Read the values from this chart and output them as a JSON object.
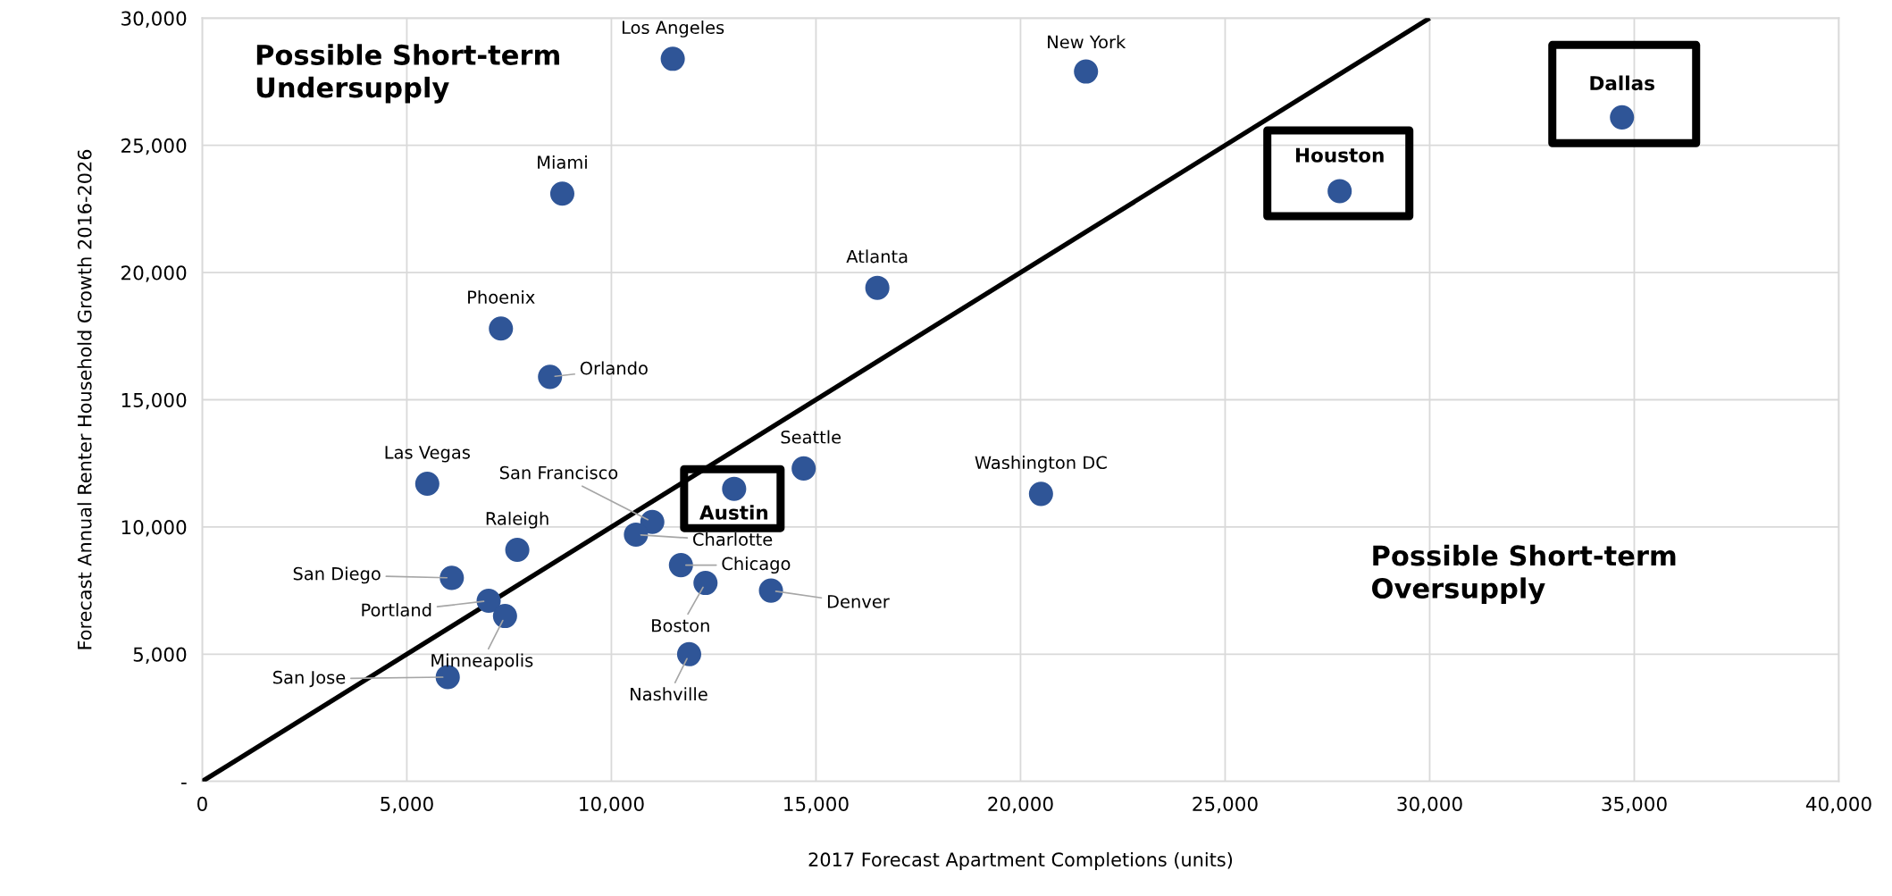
{
  "chart_data": {
    "type": "scatter",
    "xlabel": "2017 Forecast Apartment Completions (units)",
    "ylabel": "Forecast Annual Renter Household Growth 2016-2026",
    "xlim": [
      0,
      40000
    ],
    "ylim": [
      0,
      30000
    ],
    "xticks": [
      0,
      {
        "value": 5000,
        "label": "5,000"
      },
      {
        "value": 10000,
        "label": "10,000"
      },
      {
        "value": 15000,
        "label": "15,000"
      },
      {
        "value": 20000,
        "label": "20,000"
      },
      {
        "value": 25000,
        "label": "25,000"
      },
      {
        "value": 30000,
        "label": "30,000"
      },
      {
        "value": 35000,
        "label": "35,000"
      },
      {
        "value": 40000,
        "label": "40,000"
      }
    ],
    "yticks": [
      {
        "value": 0,
        "label": "-"
      },
      {
        "value": 5000,
        "label": "5,000"
      },
      {
        "value": 10000,
        "label": "10,000"
      },
      {
        "value": 15000,
        "label": "15,000"
      },
      {
        "value": 20000,
        "label": "20,000"
      },
      {
        "value": 25000,
        "label": "25,000"
      },
      {
        "value": 30000,
        "label": "30,000"
      }
    ],
    "grid": true,
    "legend": false,
    "marker": "circle",
    "series": [
      {
        "type": "line",
        "color": "#000000",
        "x": [
          0,
          30000
        ],
        "values": [
          0,
          30000
        ],
        "line_style": "solid",
        "marker": "none"
      },
      {
        "color": "#2f5597",
        "x": [
          11500,
          21600,
          8800,
          16500,
          7300,
          8500,
          5500,
          14700,
          20500,
          11000,
          10600,
          7700,
          11700,
          12300,
          13900,
          6100,
          7000,
          7400,
          11900,
          6000
        ],
        "values": [
          28400,
          27900,
          23100,
          19400,
          17800,
          15900,
          11700,
          12300,
          11300,
          10200,
          9700,
          9100,
          8500,
          7800,
          7500,
          8000,
          7100,
          6500,
          5000,
          4100
        ]
      },
      {
        "color": "#2f5597",
        "x": [
          13000,
          27800,
          34700
        ],
        "values": [
          11500,
          23200,
          26100
        ]
      }
    ],
    "annotations": [
      "Possible Short-term\nUndersupply",
      "Possible Short-term\nOversupply",
      {
        "text": "Los Angeles",
        "x": 11500,
        "y": 28400
      },
      {
        "text": "New York",
        "x": 21600,
        "y": 27900
      },
      {
        "text": "Miami",
        "x": 8800,
        "y": 23100
      },
      {
        "text": "Atlanta",
        "x": 16500,
        "y": 19400
      },
      {
        "text": "Phoenix",
        "x": 7300,
        "y": 17800
      },
      {
        "text": "Orlando",
        "x": 8500,
        "y": 15900
      },
      {
        "text": "Las Vegas",
        "x": 5500,
        "y": 11700
      },
      {
        "text": "Seattle",
        "x": 14700,
        "y": 12300
      },
      {
        "text": "Washington DC",
        "x": 20500,
        "y": 11300
      },
      {
        "text": "San Francisco",
        "x": 11000,
        "y": 10200
      },
      {
        "text": "Charlotte",
        "x": 10600,
        "y": 9700
      },
      {
        "text": "Raleigh",
        "x": 7700,
        "y": 9100
      },
      {
        "text": "Chicago",
        "x": 11700,
        "y": 8500
      },
      {
        "text": "Boston",
        "x": 12300,
        "y": 7800
      },
      {
        "text": "Denver",
        "x": 13900,
        "y": 7500
      },
      {
        "text": "San Diego",
        "x": 6100,
        "y": 8000
      },
      {
        "text": "Portland",
        "x": 7000,
        "y": 7100
      },
      {
        "text": "Minneapolis",
        "x": 7400,
        "y": 6500
      },
      {
        "text": "Nashville",
        "x": 11900,
        "y": 5000
      },
      {
        "text": "San Jose",
        "x": 6000,
        "y": 4100
      },
      {
        "text": "Austin",
        "x": 13000,
        "y": 11500
      },
      {
        "text": "Houston",
        "x": 27800,
        "y": 23200
      },
      {
        "text": "Dallas",
        "x": 34700,
        "y": 26100
      }
    ]
  }
}
